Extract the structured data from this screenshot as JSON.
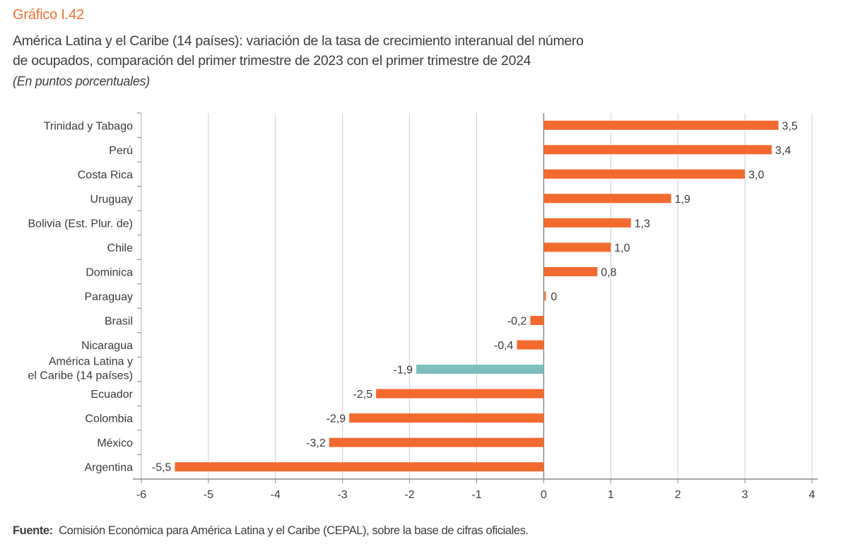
{
  "figure": {
    "number": "Gráfico I.42",
    "title_line1": "América Latina y el Caribe (14 países): variación de la tasa de crecimiento interanual del número",
    "title_line2": "de ocupados, comparación del primer trimestre de 2023 con el primer trimestre de 2024",
    "unit": "(En puntos porcentuales)",
    "source_label": "Fuente:",
    "source_text": "Comisión Económica para América Latina y el Caribe (CEPAL), sobre la base de cifras oficiales."
  },
  "colors": {
    "country_bar": "#f26a2e",
    "aggregate_bar": "#7dbdbd",
    "grid": "#cfcfcf",
    "axis": "#8a8a8a"
  },
  "chart_data": {
    "type": "bar",
    "orientation": "horizontal",
    "title": "América Latina y el Caribe (14 países): variación de la tasa de crecimiento interanual del número de ocupados, comparación del primer trimestre de 2023 con el primer trimestre de 2024",
    "subtitle": "(En puntos porcentuales)",
    "xlabel": "",
    "ylabel": "",
    "xlim": [
      -6,
      4
    ],
    "xticks": [
      -6,
      -5,
      -4,
      -3,
      -2,
      -1,
      0,
      1,
      2,
      3,
      4
    ],
    "grid": true,
    "legend": "none",
    "categories": [
      [
        "Trinidad y Tabago"
      ],
      [
        "Perú"
      ],
      [
        "Costa Rica"
      ],
      [
        "Uruguay"
      ],
      [
        "Bolivia (Est. Plur. de)"
      ],
      [
        "Chile"
      ],
      [
        "Dominica"
      ],
      [
        "Paraguay"
      ],
      [
        "Brasil"
      ],
      [
        "Nicaragua"
      ],
      [
        "América Latina y",
        "el Caribe (14 países)"
      ],
      [
        "Ecuador"
      ],
      [
        "Colombia"
      ],
      [
        "México"
      ],
      [
        "Argentina"
      ]
    ],
    "values": [
      3.5,
      3.4,
      3.0,
      1.9,
      1.3,
      1.0,
      0.8,
      0.0,
      -0.2,
      -0.4,
      -1.9,
      -2.5,
      -2.9,
      -3.2,
      -5.5
    ],
    "labels": [
      "3,5",
      "3,4",
      "3,0",
      "1,9",
      "1,3",
      "1,0",
      "0,8",
      "0",
      "-0,2",
      "-0,4",
      "-1,9",
      "-2,5",
      "-2,9",
      "-3,2",
      "-5,5"
    ],
    "highlight": [
      false,
      false,
      false,
      false,
      false,
      false,
      false,
      false,
      false,
      false,
      true,
      false,
      false,
      false,
      false
    ]
  }
}
